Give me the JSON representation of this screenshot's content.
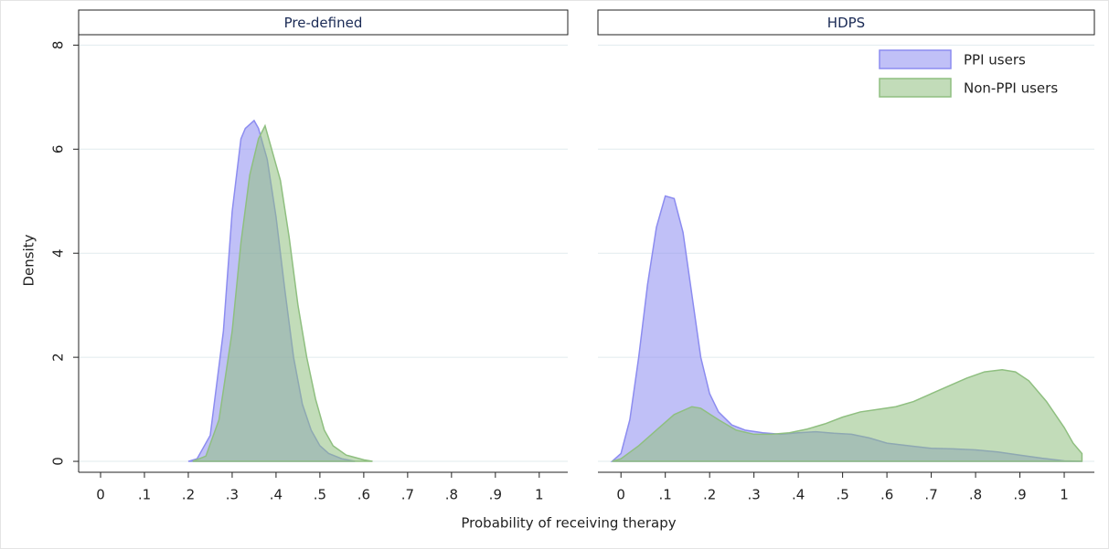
{
  "xlabel": "Probability of receiving therapy",
  "ylabel": "Density",
  "chart_data": [
    {
      "type": "area",
      "title": "Pre-defined",
      "xlim": [
        -0.05,
        1.065
      ],
      "ylim": [
        -0.21,
        8.2
      ],
      "xticks": [
        0,
        {
          "value": 0.1,
          "label": ".1"
        },
        {
          "value": 0.2,
          "label": ".2"
        },
        {
          "value": 0.3,
          "label": ".3"
        },
        {
          "value": 0.4,
          "label": ".4"
        },
        {
          "value": 0.5,
          "label": ".5"
        },
        {
          "value": 0.6,
          "label": ".6"
        },
        {
          "value": 0.7,
          "label": ".7"
        },
        {
          "value": 0.8,
          "label": ".8"
        },
        {
          "value": 0.9,
          "label": ".9"
        },
        1
      ],
      "yticks": [
        0,
        2,
        4,
        6,
        8
      ],
      "grid": true,
      "show_yticklabels": true,
      "series": [
        {
          "color": "#8c8cf0",
          "x": [
            0.2,
            0.22,
            0.25,
            0.28,
            0.3,
            0.32,
            0.33,
            0.35,
            0.36,
            0.38,
            0.4,
            0.42,
            0.44,
            0.46,
            0.48,
            0.5,
            0.52,
            0.55,
            0.58
          ],
          "values": [
            0,
            0.05,
            0.5,
            2.5,
            4.8,
            6.2,
            6.4,
            6.55,
            6.4,
            5.8,
            4.7,
            3.3,
            2.0,
            1.1,
            0.6,
            0.3,
            0.15,
            0.05,
            0
          ]
        },
        {
          "color": "#8fbf80",
          "x": [
            0.21,
            0.24,
            0.27,
            0.3,
            0.32,
            0.34,
            0.36,
            0.375,
            0.39,
            0.41,
            0.43,
            0.45,
            0.47,
            0.49,
            0.51,
            0.53,
            0.56,
            0.6,
            0.62
          ],
          "values": [
            0,
            0.1,
            0.8,
            2.5,
            4.2,
            5.5,
            6.2,
            6.45,
            6.0,
            5.4,
            4.3,
            3.0,
            2.0,
            1.2,
            0.6,
            0.3,
            0.12,
            0.03,
            0
          ]
        }
      ]
    },
    {
      "type": "area",
      "title": "HDPS",
      "xlim": [
        -0.052,
        1.068
      ],
      "ylim": [
        -0.21,
        8.2
      ],
      "xticks": [
        0,
        {
          "value": 0.1,
          "label": ".1"
        },
        {
          "value": 0.2,
          "label": ".2"
        },
        {
          "value": 0.3,
          "label": ".3"
        },
        {
          "value": 0.4,
          "label": ".4"
        },
        {
          "value": 0.5,
          "label": ".5"
        },
        {
          "value": 0.6,
          "label": ".6"
        },
        {
          "value": 0.7,
          "label": ".7"
        },
        {
          "value": 0.8,
          "label": ".8"
        },
        {
          "value": 0.9,
          "label": ".9"
        },
        1
      ],
      "yticks": [
        0,
        2,
        4,
        6,
        8
      ],
      "grid": true,
      "show_yticklabels": false,
      "legend": "top-right",
      "series": [
        {
          "name": "PPI users",
          "color": "#8c8cf0",
          "x": [
            -0.02,
            0,
            0.02,
            0.04,
            0.06,
            0.08,
            0.1,
            0.12,
            0.14,
            0.16,
            0.18,
            0.2,
            0.22,
            0.25,
            0.28,
            0.32,
            0.36,
            0.4,
            0.44,
            0.48,
            0.52,
            0.56,
            0.6,
            0.65,
            0.7,
            0.75,
            0.8,
            0.85,
            0.9,
            0.95,
            1.0,
            1.04
          ],
          "values": [
            0,
            0.15,
            0.8,
            2.0,
            3.4,
            4.5,
            5.1,
            5.05,
            4.4,
            3.2,
            2.0,
            1.3,
            0.95,
            0.7,
            0.6,
            0.55,
            0.52,
            0.55,
            0.57,
            0.54,
            0.52,
            0.45,
            0.35,
            0.3,
            0.25,
            0.24,
            0.22,
            0.18,
            0.12,
            0.06,
            0.01,
            0
          ]
        },
        {
          "name": "Non-PPI users",
          "color": "#8fbf80",
          "x": [
            -0.02,
            0,
            0.04,
            0.08,
            0.12,
            0.16,
            0.18,
            0.22,
            0.26,
            0.3,
            0.34,
            0.38,
            0.42,
            0.46,
            0.5,
            0.54,
            0.58,
            0.62,
            0.66,
            0.7,
            0.74,
            0.78,
            0.82,
            0.86,
            0.89,
            0.92,
            0.96,
            1.0,
            1.02,
            1.04
          ],
          "values": [
            0,
            0.05,
            0.3,
            0.6,
            0.9,
            1.05,
            1.02,
            0.8,
            0.6,
            0.52,
            0.52,
            0.55,
            0.62,
            0.72,
            0.85,
            0.95,
            1.0,
            1.05,
            1.15,
            1.3,
            1.45,
            1.6,
            1.72,
            1.76,
            1.72,
            1.55,
            1.15,
            0.65,
            0.35,
            0.15
          ]
        }
      ]
    }
  ]
}
